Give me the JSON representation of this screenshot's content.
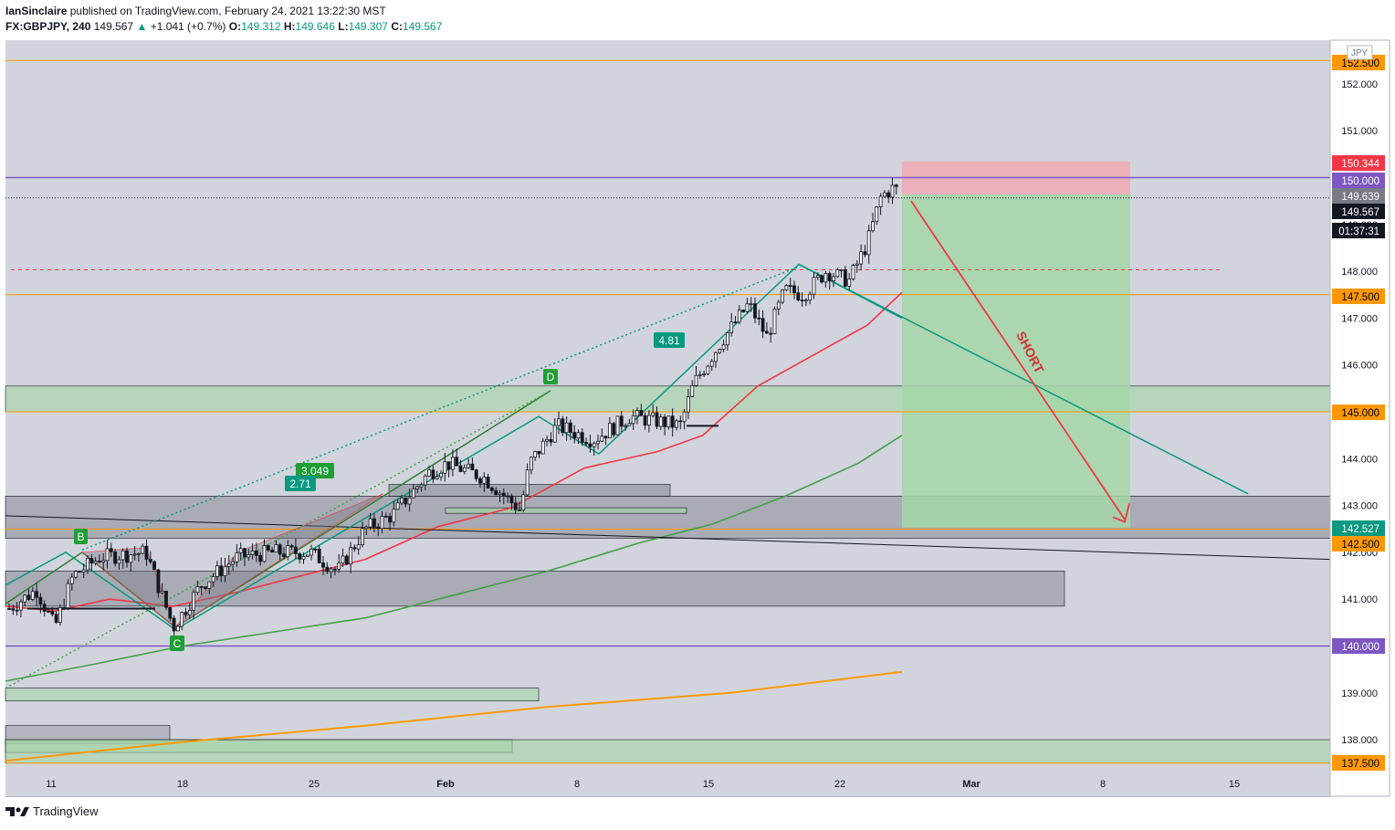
{
  "header": {
    "author": "IanSinclaire",
    "published_text": "published on TradingView.com, February 24, 2021 13:22:30 MST",
    "symbol": "FX:GBPJPY, 240",
    "last": "149.567",
    "change": "+1.041 (+0.7%)",
    "o_label": "O:",
    "o": "149.312",
    "h_label": "H:",
    "h": "149.646",
    "l_label": "L:",
    "l": "149.307",
    "c_label": "C:",
    "c": "149.567"
  },
  "footer": {
    "brand": "TradingView"
  },
  "chart_data": {
    "type": "candlestick",
    "currency": "JPY",
    "ylim": [
      137.3,
      153.0
    ],
    "x_tick_labels": [
      "11",
      "18",
      "25",
      "Feb",
      "8",
      "15",
      "22",
      "Mar",
      "8",
      "15"
    ],
    "y_tick_labels": [
      "152.000",
      "151.000",
      "150.000",
      "149.000",
      "148.000",
      "147.000",
      "146.000",
      "145.000",
      "144.000",
      "143.000",
      "142.000",
      "141.000",
      "140.000",
      "139.000",
      "138.000",
      "137.500"
    ],
    "price_tags": [
      {
        "value": "152.500",
        "color": "#ff9800",
        "text_color": "#000000"
      },
      {
        "value": "150.344",
        "color": "#f23645",
        "text_color": "#ffffff"
      },
      {
        "value": "150.000",
        "color": "#7e57c2",
        "text_color": "#ffffff"
      },
      {
        "value": "149.639",
        "color": "#787b86",
        "text_color": "#ffffff"
      },
      {
        "value": "149.567",
        "color": "#131722",
        "text_color": "#ffffff"
      },
      {
        "value": "01:37:31",
        "color": "#131722",
        "text_color": "#ffffff"
      },
      {
        "value": "147.500",
        "color": "#ff9800",
        "text_color": "#000000"
      },
      {
        "value": "145.000",
        "color": "#ff9800",
        "text_color": "#000000"
      },
      {
        "value": "142.527",
        "color": "#089981",
        "text_color": "#ffffff"
      },
      {
        "value": "142.500",
        "color": "#ff9800",
        "text_color": "#000000"
      },
      {
        "value": "140.000",
        "color": "#7e57c2",
        "text_color": "#ffffff"
      },
      {
        "value": "137.500",
        "color": "#ff9800",
        "text_color": "#000000"
      }
    ],
    "horizontal_levels": [
      {
        "value": 152.5,
        "color": "#ff9800"
      },
      {
        "value": 150.0,
        "color": "#7e57c2"
      },
      {
        "value": 149.567,
        "color": "#131722",
        "style": "dotted"
      },
      {
        "value": 148.03,
        "color": "#f23645",
        "style": "dashed"
      },
      {
        "value": 147.5,
        "color": "#ff9800"
      },
      {
        "value": 145.0,
        "color": "#ff9800"
      },
      {
        "value": 142.5,
        "color": "#ff9800"
      },
      {
        "value": 140.0,
        "color": "#7e57c2"
      },
      {
        "value": 137.5,
        "color": "#ff9800"
      }
    ],
    "pattern_labels": [
      "B",
      "C",
      "D"
    ],
    "ratio_labels": [
      "4.81",
      "3.049",
      "2.71"
    ],
    "trade": {
      "direction": "SHORT",
      "entry": 149.639,
      "stop": 150.344,
      "target": 142.527
    },
    "series": [
      {
        "name": "",
        "color": "#f23645",
        "values": [
          140.85,
          141.1,
          141.55,
          142.1,
          142.75,
          143.4,
          144.3,
          145.55,
          146.4,
          147.55
        ]
      },
      {
        "name": "",
        "color": "#43a047",
        "values": [
          139.3,
          139.8,
          140.3,
          140.8,
          141.5,
          142.3,
          143.2,
          144.5
        ]
      },
      {
        "name": "",
        "color": "#ff9800",
        "values": [
          137.55,
          138.05,
          138.6,
          139.45
        ]
      }
    ],
    "candles_approx_close": [
      140.9,
      141.3,
      140.6,
      141.2,
      141.8,
      142.0,
      141.6,
      142.1,
      141.8,
      140.5,
      141.0,
      141.6,
      142.1,
      141.5,
      142.0,
      142.1,
      141.8,
      142.3,
      142.6,
      142.9,
      143.5,
      143.9,
      143.6,
      143.2,
      143.5,
      143.1,
      142.9,
      144.0,
      144.6,
      144.8,
      144.4,
      144.2,
      144.6,
      144.8,
      144.7,
      144.6,
      145.3,
      146.2,
      146.8,
      147.2,
      146.8,
      147.4,
      147.6,
      148.0,
      147.8,
      148.1,
      148.4,
      149.6,
      149.4,
      149.567
    ]
  }
}
